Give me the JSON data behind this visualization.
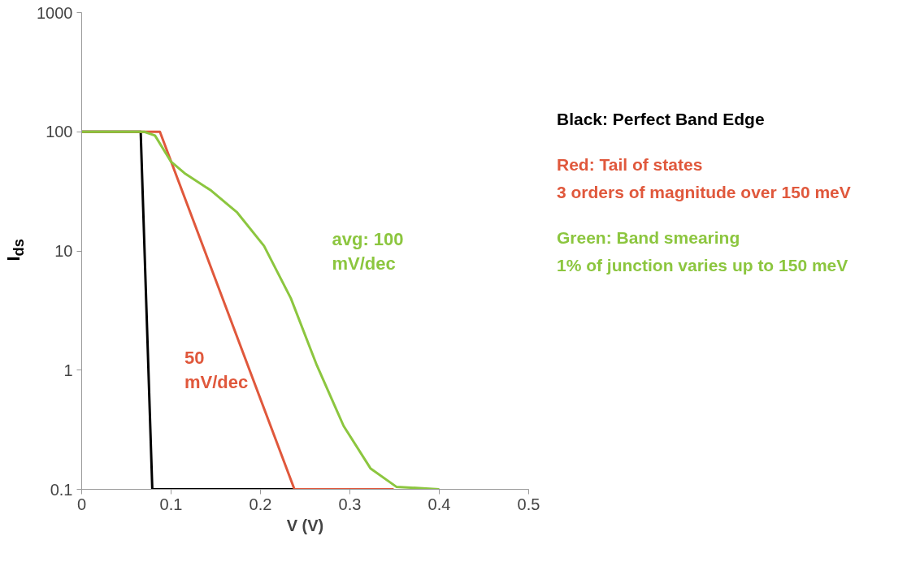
{
  "chart_data": {
    "type": "line",
    "xlabel": "V (V)",
    "ylabel": "I$_{ds}$",
    "log": "y",
    "xlim": [
      0,
      0.5
    ],
    "xticks": [
      0,
      0.1,
      0.2,
      0.3,
      0.4,
      0.5
    ],
    "ylim": [
      0.1,
      1000
    ],
    "yticks": [
      0.1,
      1,
      10,
      100,
      1000
    ],
    "grid": false,
    "series": [
      {
        "color": "#000000",
        "x": [
          0,
          0.066,
          0.079,
          0.238
        ],
        "values": [
          100,
          100,
          0.1,
          0.1
        ]
      },
      {
        "color": "#e0583c",
        "x": [
          0,
          0.0875,
          0.238,
          0.349
        ],
        "values": [
          100,
          100,
          0.1,
          0.1
        ]
      },
      {
        "color": "#8cc63f",
        "x": [
          0,
          0.07,
          0.082,
          0.1,
          0.115,
          0.145,
          0.174,
          0.204,
          0.234,
          0.263,
          0.293,
          0.323,
          0.352,
          0.4
        ],
        "values": [
          100,
          100,
          93,
          56,
          45,
          32,
          21,
          11,
          4.0,
          1.1,
          0.34,
          0.15,
          0.105,
          0.1
        ]
      }
    ],
    "annotations": [
      "avg: 100\nmV/dec",
      "50\nmV/dec",
      "Black: Perfect Band Edge",
      "Red: Tail of states\n3 orders of magnitude over 150 meV",
      "Green: Band smearing\n1% of junction varies up to 150 meV"
    ]
  }
}
